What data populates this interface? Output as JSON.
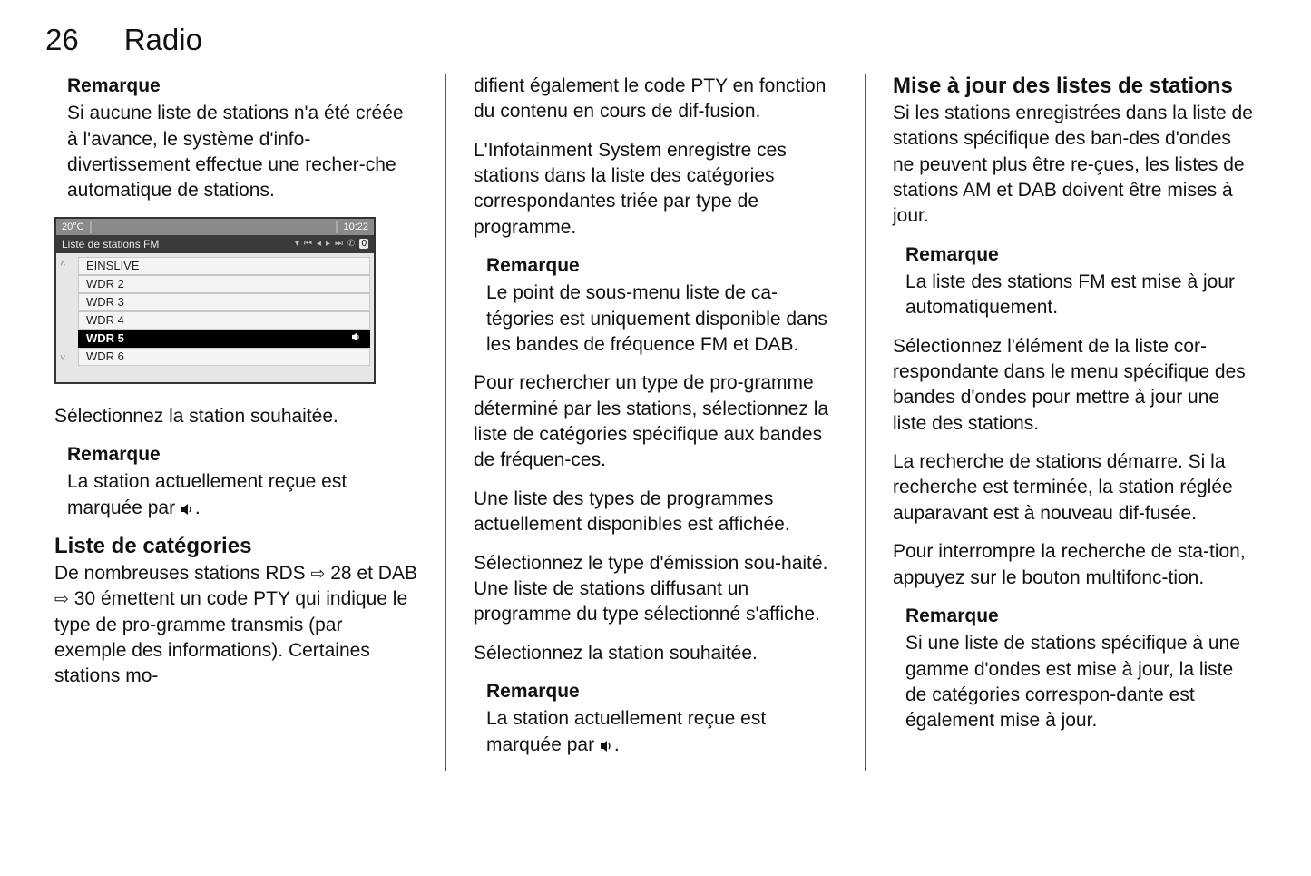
{
  "header": {
    "page_number": "26",
    "title": "Radio"
  },
  "col1": {
    "remark1": {
      "title": "Remarque",
      "body": "Si aucune liste de stations n'a été créée à l'avance, le système d'info-divertissement effectue une recher-che automatique de stations."
    },
    "mock": {
      "temp": "20°C",
      "time": "10:22",
      "list_title": "Liste de stations FM",
      "items": [
        "EINSLIVE",
        "WDR 2",
        "WDR 3",
        "WDR 4",
        "WDR 5",
        "WDR 6"
      ],
      "selected_index": 4
    },
    "p1": "Sélectionnez la station souhaitée.",
    "remark2": {
      "title": "Remarque",
      "body_pre": "La station actuellement reçue est marquée par ",
      "body_post": "."
    },
    "section_title": "Liste de catégories",
    "p2_a": "De nombreuses stations RDS ",
    "link1": "28",
    "p2_b": " et DAB ",
    "link2": "30",
    "p2_c": " émettent un code PTY qui indique le type de pro-gramme transmis (par exemple des informations). Certaines stations mo-"
  },
  "col2": {
    "p1": "difient également le code PTY en fonction du contenu en cours de dif-fusion.",
    "p2": "L'Infotainment System enregistre ces stations dans la liste des catégories correspondantes triée par type de programme.",
    "remark1": {
      "title": "Remarque",
      "body": "Le point de sous-menu liste de ca-tégories est uniquement disponible dans les bandes de fréquence FM et DAB."
    },
    "p3": "Pour rechercher un type de pro-gramme déterminé par les stations, sélectionnez la liste de catégories spécifique aux bandes de fréquen-ces.",
    "p4": "Une liste des types de programmes actuellement disponibles est affichée.",
    "p5": "Sélectionnez le type d'émission sou-haité. Une liste de stations diffusant un programme du type sélectionné s'affiche.",
    "p6": "Sélectionnez la station souhaitée.",
    "remark2": {
      "title": "Remarque",
      "body_pre": "La station actuellement reçue est marquée par ",
      "body_post": "."
    }
  },
  "col3": {
    "section_title": "Mise à jour des listes de stations",
    "p1": "Si les stations enregistrées dans la liste de stations spécifique des ban-des d'ondes ne peuvent plus être re-çues, les listes de stations AM et DAB doivent être mises à jour.",
    "remark1": {
      "title": "Remarque",
      "body": "La liste des stations FM est mise à jour automatiquement."
    },
    "p2": "Sélectionnez l'élément de la liste cor-respondante dans le menu spécifique des bandes d'ondes pour mettre à jour une liste des stations.",
    "p3": "La recherche de stations démarre. Si la recherche est terminée, la station réglée auparavant est à nouveau dif-fusée.",
    "p4": "Pour interrompre la recherche de sta-tion, appuyez sur le bouton multifonc-tion.",
    "remark2": {
      "title": "Remarque",
      "body": "Si une liste de stations spécifique à une gamme d'ondes est mise à jour, la liste de catégories correspon-dante est également mise à jour."
    }
  }
}
